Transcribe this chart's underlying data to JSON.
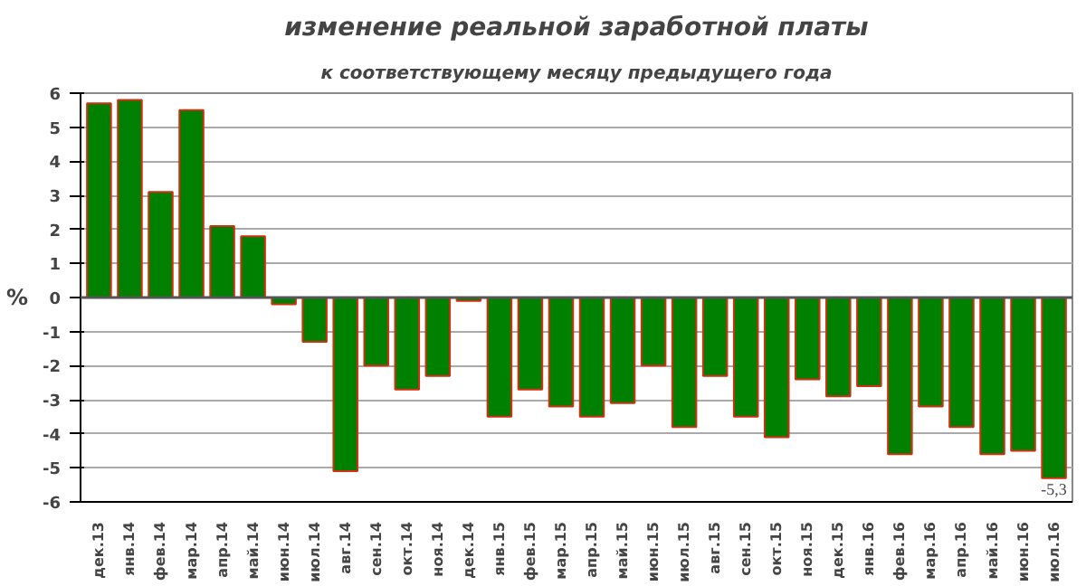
{
  "chart_data": {
    "type": "bar",
    "title": "изменение реальной заработной платы",
    "subtitle": "к соответствующему месяцу предыдущего года",
    "ylabel": "%",
    "categories": [
      "дек.13",
      "янв.14",
      "фев.14",
      "мар.14",
      "апр.14",
      "май.14",
      "июн.14",
      "июл.14",
      "авг.14",
      "сен.14",
      "окт.14",
      "ноя.14",
      "дек.14",
      "янв.15",
      "фев.15",
      "мар.15",
      "апр.15",
      "май.15",
      "июн.15",
      "июл.15",
      "авг.15",
      "сен.15",
      "окт.15",
      "ноя.15",
      "дек.15",
      "янв.16",
      "фев.16",
      "мар.16",
      "апр.16",
      "май.16",
      "июн.16",
      "июл.16"
    ],
    "values": [
      5.7,
      5.8,
      3.1,
      5.5,
      2.1,
      1.8,
      -0.2,
      -1.3,
      -5.1,
      -2.0,
      -2.7,
      -2.3,
      -0.1,
      -3.5,
      -2.7,
      -3.2,
      -3.5,
      -3.1,
      -2.0,
      -3.8,
      -2.3,
      -3.5,
      -4.1,
      -2.4,
      -2.9,
      -2.6,
      -4.6,
      -3.2,
      -3.8,
      -4.6,
      -4.5,
      -5.3
    ],
    "value_labels": [
      null,
      null,
      null,
      null,
      null,
      null,
      null,
      null,
      null,
      null,
      null,
      null,
      null,
      null,
      null,
      null,
      null,
      null,
      null,
      null,
      null,
      null,
      null,
      null,
      null,
      null,
      null,
      null,
      null,
      null,
      null,
      "-5,3"
    ],
    "color": "#008000",
    "ylim": [
      -6,
      6
    ],
    "yticks": [
      -6,
      -5,
      -4,
      -3,
      -2,
      -1,
      0,
      1,
      2,
      3,
      4,
      5,
      6
    ],
    "grid": "y"
  }
}
